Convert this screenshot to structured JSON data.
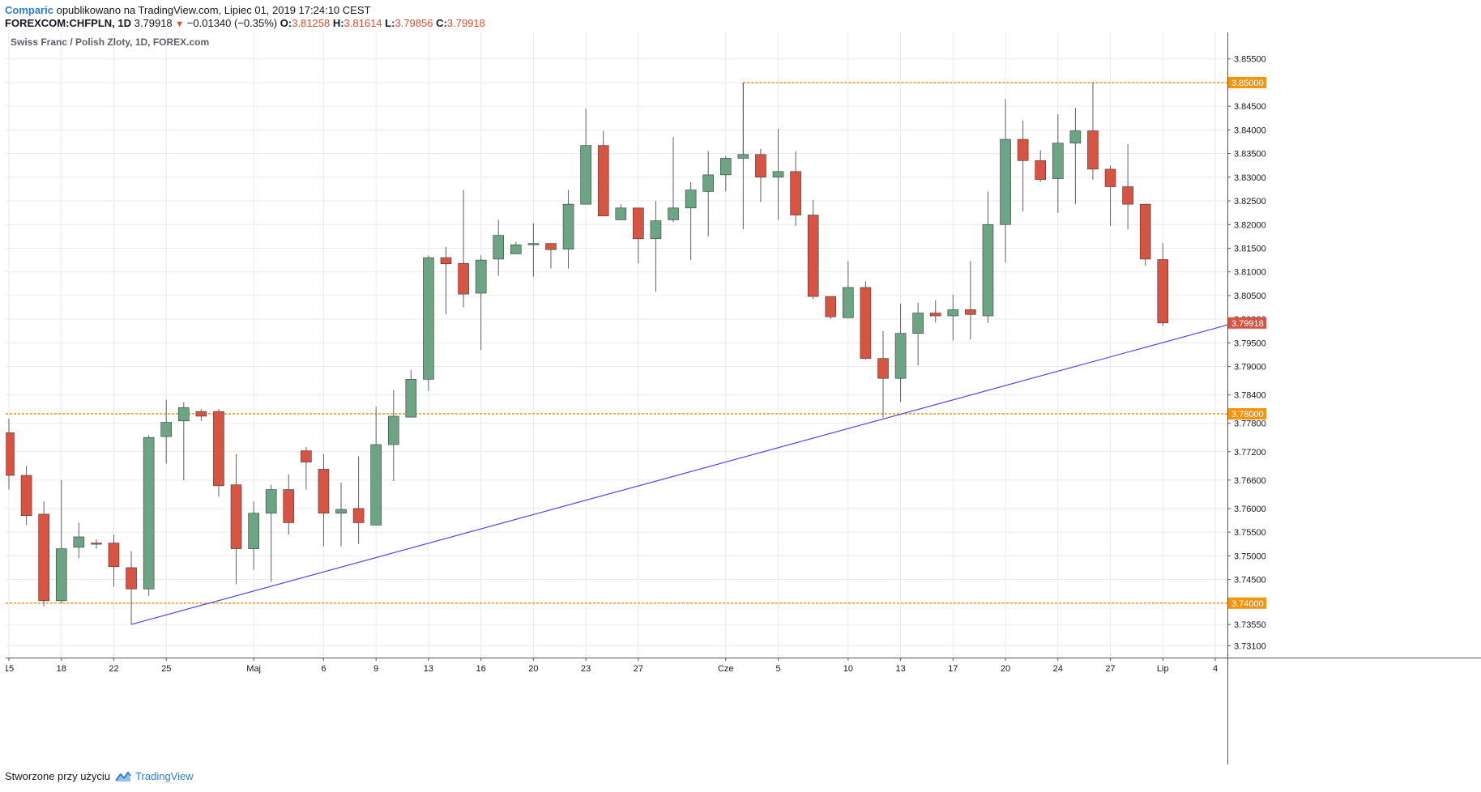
{
  "header": {
    "brand": "Comparic",
    "published": "opublikowano na TradingView.com, Lipiec 01, 2019 17:24:10 CEST",
    "symbol": "FOREXCOM:CHFPLN,",
    "interval": "1D",
    "last": "3.79918",
    "change_arrow": "▼",
    "change": "−0.01340 (−0.35%)",
    "o_label": "O:",
    "o_value": "3.81258",
    "h_label": "H:",
    "h_value": "3.81614",
    "l_label": "L:",
    "l_value": "3.79856",
    "c_label": "C:",
    "c_value": "3.79918"
  },
  "footer": {
    "created_with": "Stworzone przy użyciu",
    "brand": "TradingView",
    "logo_icon": "tradingview-logo-icon"
  },
  "colors": {
    "up": "#6ba583",
    "down": "#d75442",
    "wick": "#5d606b",
    "grid": "#e9eaec",
    "level": "#f5940a",
    "trend": "#4c48e8",
    "price_label_bg": "#f5940a",
    "last_label_bg": "#d75442"
  },
  "chart_data": {
    "type": "candlestick",
    "title": "Swiss Franc / Polish Zloty, 1D, FOREX.com",
    "xlabel": "",
    "ylabel": "",
    "ylim": [
      3.7285,
      3.8606
    ],
    "grid": true,
    "y_ticks": [
      "3.85500",
      "3.85000",
      "3.84500",
      "3.84000",
      "3.83500",
      "3.83000",
      "3.82500",
      "3.82000",
      "3.81500",
      "3.81000",
      "3.80500",
      "3.80000",
      "3.79500",
      "3.79000",
      "3.78400",
      "3.77800",
      "3.77200",
      "3.76600",
      "3.76000",
      "3.75500",
      "3.75000",
      "3.74500",
      "3.74000",
      "3.73550",
      "3.73100"
    ],
    "x_ticks": [
      {
        "label": "15",
        "index": 0
      },
      {
        "label": "18",
        "index": 3
      },
      {
        "label": "22",
        "index": 6
      },
      {
        "label": "25",
        "index": 9
      },
      {
        "label": "Maj",
        "index": 14
      },
      {
        "label": "6",
        "index": 18
      },
      {
        "label": "9",
        "index": 21
      },
      {
        "label": "13",
        "index": 24
      },
      {
        "label": "16",
        "index": 27
      },
      {
        "label": "20",
        "index": 30
      },
      {
        "label": "23",
        "index": 33
      },
      {
        "label": "27",
        "index": 36
      },
      {
        "label": "Cze",
        "index": 41
      },
      {
        "label": "5",
        "index": 44
      },
      {
        "label": "10",
        "index": 48
      },
      {
        "label": "13",
        "index": 51
      },
      {
        "label": "17",
        "index": 54
      },
      {
        "label": "20",
        "index": 57
      },
      {
        "label": "24",
        "index": 60
      },
      {
        "label": "27",
        "index": 63
      },
      {
        "label": "Lip",
        "index": 66
      },
      {
        "label": "4",
        "index": 69
      }
    ],
    "candles": [
      {
        "o": 3.776,
        "h": 3.779,
        "l": 3.764,
        "c": 3.767
      },
      {
        "o": 3.767,
        "h": 3.769,
        "l": 3.7565,
        "c": 3.7585
      },
      {
        "o": 3.7588,
        "h": 3.7615,
        "l": 3.7393,
        "c": 3.7405
      },
      {
        "o": 3.7405,
        "h": 3.766,
        "l": 3.74,
        "c": 3.7515
      },
      {
        "o": 3.7518,
        "h": 3.757,
        "l": 3.7495,
        "c": 3.754
      },
      {
        "o": 3.7527,
        "h": 3.7535,
        "l": 3.7515,
        "c": 3.7525
      },
      {
        "o": 3.7527,
        "h": 3.7545,
        "l": 3.7435,
        "c": 3.7477
      },
      {
        "o": 3.7475,
        "h": 3.751,
        "l": 3.7355,
        "c": 3.743
      },
      {
        "o": 3.743,
        "h": 3.7755,
        "l": 3.7415,
        "c": 3.775
      },
      {
        "o": 3.7752,
        "h": 3.783,
        "l": 3.7695,
        "c": 3.7782
      },
      {
        "o": 3.7785,
        "h": 3.7825,
        "l": 3.766,
        "c": 3.7813
      },
      {
        "o": 3.7805,
        "h": 3.781,
        "l": 3.7785,
        "c": 3.7795
      },
      {
        "o": 3.7805,
        "h": 3.781,
        "l": 3.7625,
        "c": 3.7648
      },
      {
        "o": 3.765,
        "h": 3.7715,
        "l": 3.744,
        "c": 3.7515
      },
      {
        "o": 3.7515,
        "h": 3.7615,
        "l": 3.747,
        "c": 3.759
      },
      {
        "o": 3.759,
        "h": 3.765,
        "l": 3.7445,
        "c": 3.764
      },
      {
        "o": 3.764,
        "h": 3.7672,
        "l": 3.7545,
        "c": 3.757
      },
      {
        "o": 3.7722,
        "h": 3.773,
        "l": 3.764,
        "c": 3.7698
      },
      {
        "o": 3.7683,
        "h": 3.7715,
        "l": 3.752,
        "c": 3.759
      },
      {
        "o": 3.759,
        "h": 3.7655,
        "l": 3.752,
        "c": 3.7598
      },
      {
        "o": 3.76,
        "h": 3.771,
        "l": 3.7525,
        "c": 3.757
      },
      {
        "o": 3.7565,
        "h": 3.7815,
        "l": 3.7565,
        "c": 3.7735
      },
      {
        "o": 3.7735,
        "h": 3.785,
        "l": 3.7658,
        "c": 3.7795
      },
      {
        "o": 3.7793,
        "h": 3.7893,
        "l": 3.7793,
        "c": 3.7873
      },
      {
        "o": 3.7873,
        "h": 3.8135,
        "l": 3.7848,
        "c": 3.813
      },
      {
        "o": 3.813,
        "h": 3.8153,
        "l": 3.801,
        "c": 3.8117
      },
      {
        "o": 3.8118,
        "h": 3.8273,
        "l": 3.8025,
        "c": 3.8053
      },
      {
        "o": 3.8055,
        "h": 3.8135,
        "l": 3.7935,
        "c": 3.8125
      },
      {
        "o": 3.8127,
        "h": 3.821,
        "l": 3.8092,
        "c": 3.8177
      },
      {
        "o": 3.8138,
        "h": 3.8163,
        "l": 3.8138,
        "c": 3.8157
      },
      {
        "o": 3.8157,
        "h": 3.8203,
        "l": 3.809,
        "c": 3.816
      },
      {
        "o": 3.816,
        "h": 3.816,
        "l": 3.8107,
        "c": 3.8147
      },
      {
        "o": 3.8148,
        "h": 3.8273,
        "l": 3.8107,
        "c": 3.8243
      },
      {
        "o": 3.8243,
        "h": 3.8445,
        "l": 3.8243,
        "c": 3.8367
      },
      {
        "o": 3.8367,
        "h": 3.8398,
        "l": 3.8218,
        "c": 3.8218
      },
      {
        "o": 3.821,
        "h": 3.8243,
        "l": 3.821,
        "c": 3.8235
      },
      {
        "o": 3.8235,
        "h": 3.8235,
        "l": 3.8118,
        "c": 3.817
      },
      {
        "o": 3.817,
        "h": 3.825,
        "l": 3.8058,
        "c": 3.8208
      },
      {
        "o": 3.821,
        "h": 3.8385,
        "l": 3.8205,
        "c": 3.8235
      },
      {
        "o": 3.8235,
        "h": 3.829,
        "l": 3.8125,
        "c": 3.8273
      },
      {
        "o": 3.827,
        "h": 3.8355,
        "l": 3.8175,
        "c": 3.8305
      },
      {
        "o": 3.8305,
        "h": 3.8345,
        "l": 3.827,
        "c": 3.834
      },
      {
        "o": 3.834,
        "h": 3.85,
        "l": 3.819,
        "c": 3.8348
      },
      {
        "o": 3.8348,
        "h": 3.836,
        "l": 3.8248,
        "c": 3.83
      },
      {
        "o": 3.83,
        "h": 3.8402,
        "l": 3.821,
        "c": 3.8312
      },
      {
        "o": 3.8312,
        "h": 3.8355,
        "l": 3.8197,
        "c": 3.822
      },
      {
        "o": 3.822,
        "h": 3.8252,
        "l": 3.8043,
        "c": 3.8048
      },
      {
        "o": 3.8048,
        "h": 3.8048,
        "l": 3.8,
        "c": 3.8005
      },
      {
        "o": 3.8003,
        "h": 3.8123,
        "l": 3.8003,
        "c": 3.8067
      },
      {
        "o": 3.8067,
        "h": 3.808,
        "l": 3.7915,
        "c": 3.7917
      },
      {
        "o": 3.7917,
        "h": 3.7975,
        "l": 3.7792,
        "c": 3.7875
      },
      {
        "o": 3.7875,
        "h": 3.8033,
        "l": 3.7825,
        "c": 3.797
      },
      {
        "o": 3.797,
        "h": 3.8035,
        "l": 3.7902,
        "c": 3.8013
      },
      {
        "o": 3.8013,
        "h": 3.804,
        "l": 3.7993,
        "c": 3.8007
      },
      {
        "o": 3.8007,
        "h": 3.8052,
        "l": 3.7955,
        "c": 3.802
      },
      {
        "o": 3.802,
        "h": 3.8123,
        "l": 3.7957,
        "c": 3.801
      },
      {
        "o": 3.8007,
        "h": 3.827,
        "l": 3.7992,
        "c": 3.82
      },
      {
        "o": 3.82,
        "h": 3.8465,
        "l": 3.812,
        "c": 3.838
      },
      {
        "o": 3.838,
        "h": 3.842,
        "l": 3.8228,
        "c": 3.8335
      },
      {
        "o": 3.8335,
        "h": 3.8357,
        "l": 3.829,
        "c": 3.8295
      },
      {
        "o": 3.8297,
        "h": 3.8433,
        "l": 3.8225,
        "c": 3.8372
      },
      {
        "o": 3.8372,
        "h": 3.8447,
        "l": 3.8243,
        "c": 3.8398
      },
      {
        "o": 3.8398,
        "h": 3.85,
        "l": 3.8295,
        "c": 3.8317
      },
      {
        "o": 3.8317,
        "h": 3.8325,
        "l": 3.8197,
        "c": 3.828
      },
      {
        "o": 3.828,
        "h": 3.837,
        "l": 3.819,
        "c": 3.8243
      },
      {
        "o": 3.8243,
        "h": 3.8243,
        "l": 3.8113,
        "c": 3.8127
      },
      {
        "o": 3.8126,
        "h": 3.8161,
        "l": 3.7986,
        "c": 3.7992
      }
    ],
    "levels": [
      {
        "price": 3.85,
        "label": "3.85000",
        "from_index": 42
      },
      {
        "price": 3.78,
        "label": "3.78000",
        "from_index": -0.5
      },
      {
        "price": 3.74,
        "label": "3.74000",
        "from_index": -0.5
      }
    ],
    "trendline": {
      "from": {
        "index": 7,
        "price": 3.7355
      },
      "to": {
        "index": 69.7,
        "price": 3.7988
      }
    },
    "last_price_label": "3.79918"
  }
}
